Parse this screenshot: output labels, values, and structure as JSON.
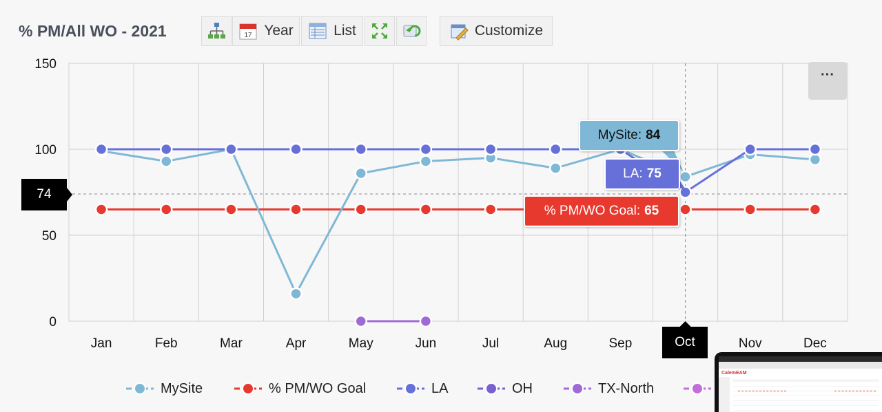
{
  "header": {
    "title": "% PM/All WO - 2021",
    "buttons": [
      {
        "id": "hierarchy",
        "icon": "hierarchy-icon",
        "label": ""
      },
      {
        "id": "year",
        "icon": "calendar-icon",
        "label": "Year"
      },
      {
        "id": "list",
        "icon": "list-icon",
        "label": "List"
      },
      {
        "id": "fullscreen",
        "icon": "expand-icon",
        "label": ""
      },
      {
        "id": "refresh",
        "icon": "refresh-icon",
        "label": ""
      },
      {
        "id": "customize",
        "icon": "customize-icon",
        "label": "Customize"
      }
    ]
  },
  "more_button": {
    "label": "···"
  },
  "cursor": {
    "y_value": "74",
    "x_value": "Oct"
  },
  "tooltips": {
    "mysite": {
      "label": "MySite:",
      "value": "84"
    },
    "la": {
      "label": "LA:",
      "value": "75"
    },
    "goal": {
      "label": "% PM/WO Goal:",
      "value": "65"
    }
  },
  "chart_data": {
    "type": "line",
    "title": "",
    "xlabel": "",
    "ylabel": "",
    "categories": [
      "Jan",
      "Feb",
      "Mar",
      "Apr",
      "May",
      "Jun",
      "Jul",
      "Aug",
      "Sep",
      "Oct",
      "Nov",
      "Dec"
    ],
    "ylim": [
      0,
      150
    ],
    "yticks": [
      0,
      50,
      100,
      150
    ],
    "grid": true,
    "legend_position": "bottom",
    "series": [
      {
        "name": "MySite",
        "color": "#7fb8d6",
        "values": [
          99,
          93,
          100,
          16,
          86,
          93,
          95,
          89,
          100,
          84,
          97,
          94
        ]
      },
      {
        "name": "% PM/WO Goal",
        "color": "#e8392e",
        "values": [
          65,
          65,
          65,
          65,
          65,
          65,
          65,
          65,
          65,
          65,
          65,
          65
        ]
      },
      {
        "name": "LA",
        "color": "#6670d8",
        "values": [
          100,
          100,
          100,
          100,
          100,
          100,
          100,
          100,
          100,
          75,
          100,
          100
        ]
      },
      {
        "name": "OH",
        "color": "#7a5fd0",
        "values": [
          null,
          null,
          null,
          null,
          null,
          null,
          null,
          null,
          null,
          null,
          null,
          null
        ]
      },
      {
        "name": "TX-North",
        "color": "#a06ad6",
        "values": [
          null,
          null,
          null,
          null,
          0,
          0,
          null,
          null,
          null,
          null,
          null,
          null
        ]
      }
    ],
    "extra_legend_color": "#c070d8"
  },
  "laptop": {
    "logo": "CalemEAM"
  }
}
